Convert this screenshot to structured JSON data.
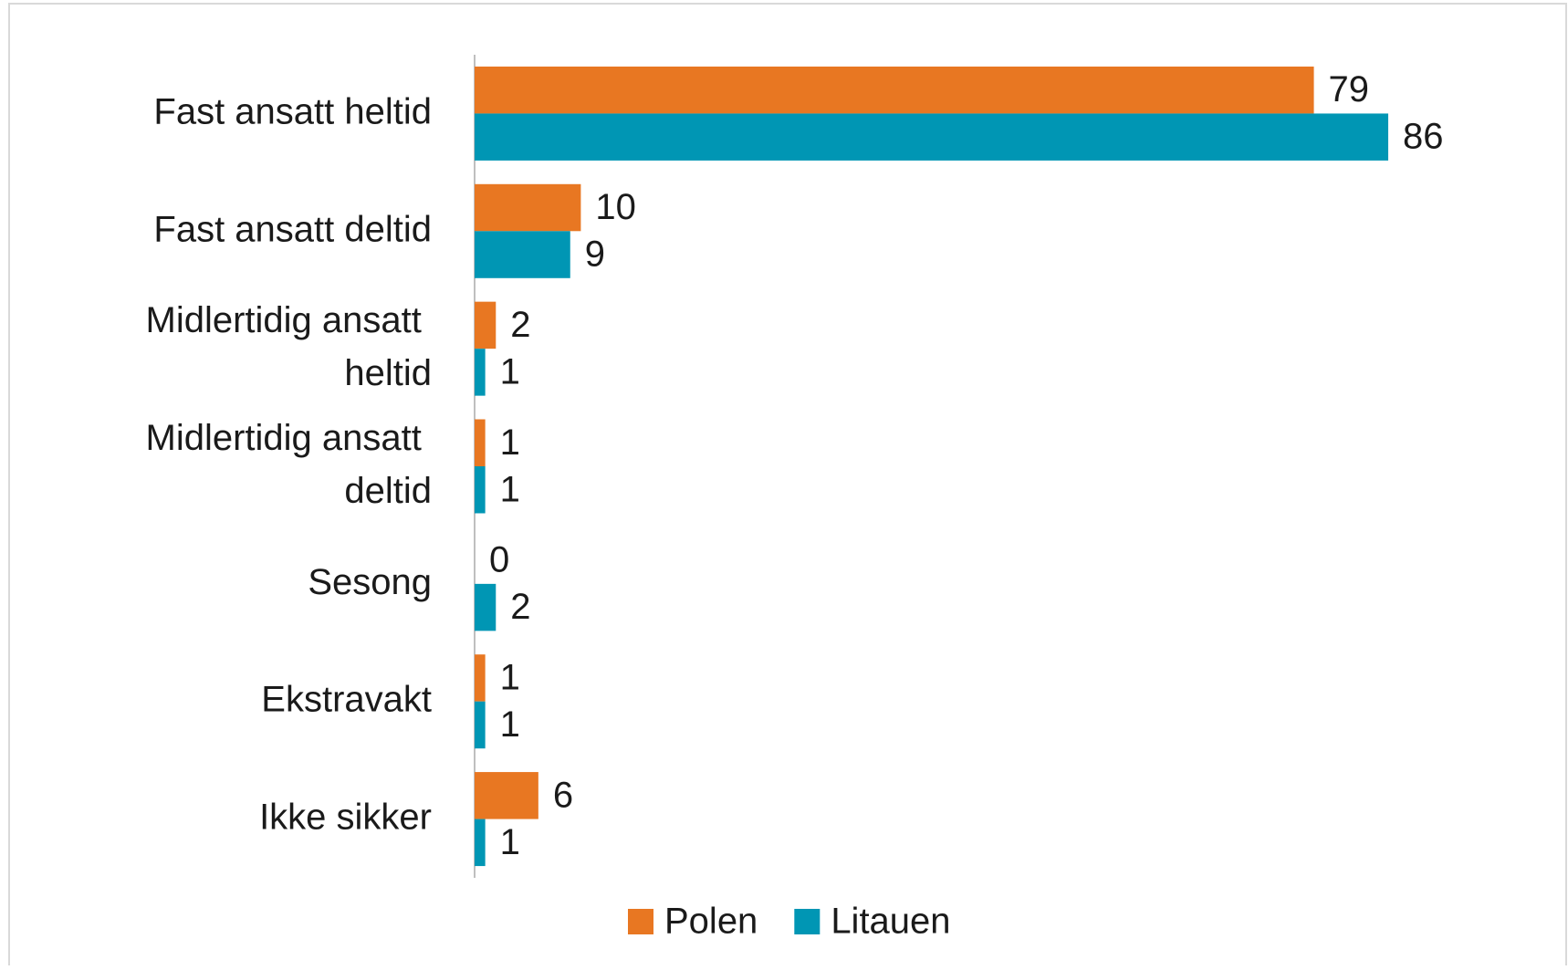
{
  "chart_data": {
    "type": "bar",
    "orientation": "horizontal",
    "categories": [
      "Fast ansatt heltid",
      "Fast ansatt deltid",
      "Midlertidig ansatt heltid",
      "Midlertidig ansatt deltid",
      "Sesong",
      "Ekstravakt",
      "Ikke sikker"
    ],
    "series": [
      {
        "name": "Polen",
        "color": "#e87722",
        "values": [
          79,
          10,
          2,
          1,
          0,
          1,
          6
        ]
      },
      {
        "name": "Litauen",
        "color": "#0096b4",
        "values": [
          86,
          9,
          1,
          1,
          2,
          1,
          1
        ]
      }
    ],
    "xlim": [
      0,
      100
    ],
    "legend": "bottom"
  }
}
